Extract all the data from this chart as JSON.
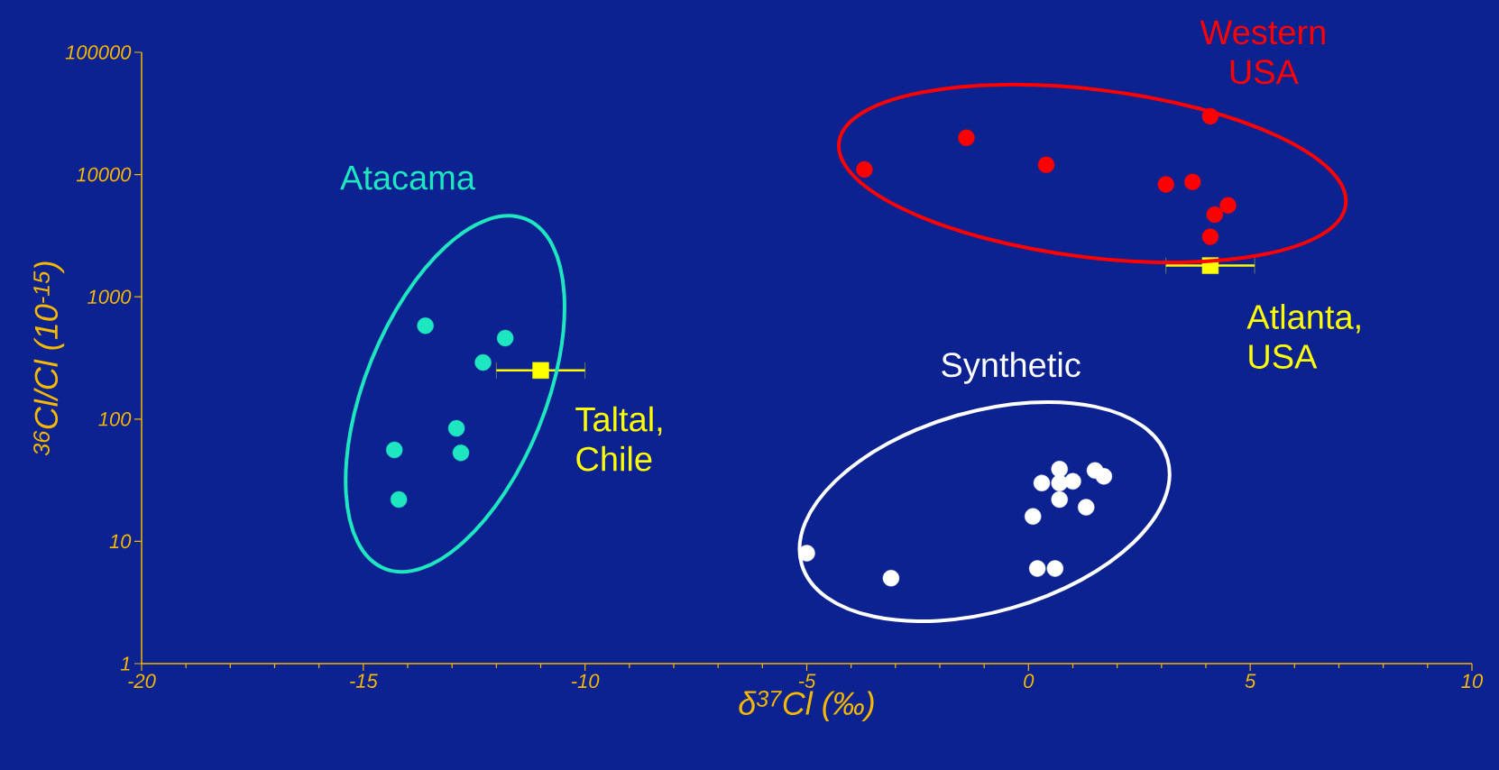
{
  "chart_data": {
    "type": "scatter",
    "xlabel": "δ$^{37}$Cl (‰)",
    "ylabel": "$^{36}$Cl/Cl (10$^{-15}$)",
    "log": "y",
    "legend": false,
    "xlim": [
      -20,
      10
    ],
    "ylim": [
      1,
      100000
    ],
    "xticks": [
      -20,
      -15,
      -10,
      -5,
      0,
      5,
      10
    ],
    "yticks": [
      1,
      10,
      100,
      1000,
      10000,
      100000
    ],
    "series": [
      {
        "name": "Atacama",
        "color": "#1ee6c0",
        "marker": "circle",
        "x": [
          -13.6,
          -11.8,
          -12.3,
          -12.9,
          -14.3,
          -12.8,
          -14.2
        ],
        "values": [
          580,
          460,
          290,
          84,
          56,
          53,
          22
        ]
      },
      {
        "name": "Western USA",
        "color": "#ff0000",
        "marker": "circle",
        "x": [
          -3.7,
          -1.4,
          0.4,
          4.1,
          3.1,
          3.7,
          4.5,
          4.2,
          4.1
        ],
        "values": [
          11000,
          20000,
          12000,
          30000,
          8300,
          8700,
          5600,
          4700,
          3100
        ]
      },
      {
        "name": "Synthetic",
        "color": "#ffffff",
        "marker": "circle",
        "x": [
          -5,
          -3.1,
          0.7,
          0.3,
          1,
          0.7,
          1.3,
          0.1,
          1.5,
          1.7,
          0.2,
          0.6,
          0.7
        ],
        "values": [
          8,
          5,
          39,
          30,
          31,
          22,
          19,
          16,
          38,
          34,
          6,
          6,
          30
        ]
      },
      {
        "name": "Taltal, Chile",
        "color": "#ffff00",
        "marker": "square",
        "x": [
          -11
        ],
        "values": [
          250
        ],
        "xerrors": [
          1
        ]
      },
      {
        "name": "Atlanta, USA",
        "color": "#ffff00",
        "marker": "square",
        "x": [
          4.1
        ],
        "values": [
          1800
        ],
        "xerrors": [
          1
        ]
      }
    ]
  }
}
